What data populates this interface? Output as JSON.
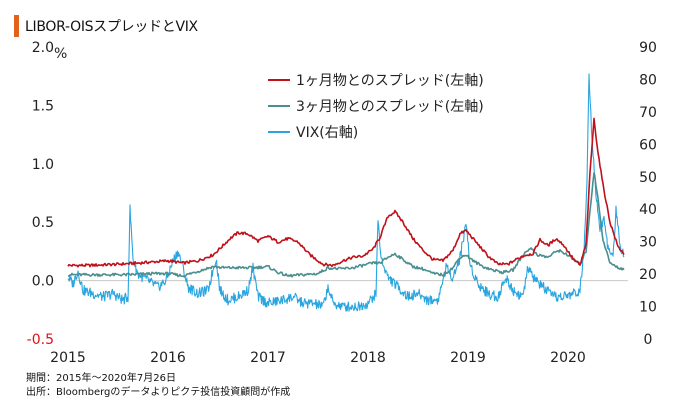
{
  "title": "LIBOR-OISスプレッドとVIX",
  "chart_data": {
    "type": "line",
    "title": "LIBOR-OISスプレッドとVIX",
    "ylabel_left": "%",
    "ylim_left": [
      -0.5,
      2.0
    ],
    "yticks_left": [
      "2.0",
      "1.5",
      "1.0",
      "0.5",
      "0.0",
      "-0.5"
    ],
    "ylim_right": [
      0,
      90
    ],
    "yticks_right": [
      "90",
      "80",
      "70",
      "60",
      "50",
      "40",
      "30",
      "20",
      "10",
      "0"
    ],
    "xticks": [
      "2015",
      "2016",
      "2017",
      "2018",
      "2019",
      "2020"
    ],
    "x_range": [
      "2015-01",
      "2020-07"
    ],
    "legend_position": "top-center",
    "series": [
      {
        "name": "1ヶ月物とのスプレッド(左軸)",
        "axis": "left",
        "color": "#c0101a",
        "points": [
          [
            2015.0,
            0.13
          ],
          [
            2015.2,
            0.13
          ],
          [
            2015.5,
            0.14
          ],
          [
            2015.7,
            0.15
          ],
          [
            2015.85,
            0.16
          ],
          [
            2016.0,
            0.17
          ],
          [
            2016.15,
            0.15
          ],
          [
            2016.3,
            0.17
          ],
          [
            2016.45,
            0.22
          ],
          [
            2016.55,
            0.3
          ],
          [
            2016.62,
            0.36
          ],
          [
            2016.7,
            0.41
          ],
          [
            2016.8,
            0.4
          ],
          [
            2016.9,
            0.34
          ],
          [
            2017.0,
            0.38
          ],
          [
            2017.1,
            0.33
          ],
          [
            2017.2,
            0.36
          ],
          [
            2017.3,
            0.33
          ],
          [
            2017.42,
            0.22
          ],
          [
            2017.55,
            0.14
          ],
          [
            2017.65,
            0.13
          ],
          [
            2017.75,
            0.17
          ],
          [
            2017.85,
            0.2
          ],
          [
            2017.95,
            0.21
          ],
          [
            2018.05,
            0.27
          ],
          [
            2018.12,
            0.37
          ],
          [
            2018.2,
            0.55
          ],
          [
            2018.27,
            0.59
          ],
          [
            2018.35,
            0.5
          ],
          [
            2018.45,
            0.36
          ],
          [
            2018.55,
            0.26
          ],
          [
            2018.65,
            0.18
          ],
          [
            2018.75,
            0.17
          ],
          [
            2018.85,
            0.26
          ],
          [
            2018.92,
            0.4
          ],
          [
            2018.98,
            0.43
          ],
          [
            2019.05,
            0.36
          ],
          [
            2019.12,
            0.29
          ],
          [
            2019.2,
            0.21
          ],
          [
            2019.3,
            0.14
          ],
          [
            2019.4,
            0.14
          ],
          [
            2019.5,
            0.19
          ],
          [
            2019.58,
            0.22
          ],
          [
            2019.65,
            0.23
          ],
          [
            2019.72,
            0.35
          ],
          [
            2019.8,
            0.3
          ],
          [
            2019.88,
            0.36
          ],
          [
            2019.95,
            0.31
          ],
          [
            2020.05,
            0.19
          ],
          [
            2020.12,
            0.13
          ],
          [
            2020.18,
            0.31
          ],
          [
            2020.22,
            0.92
          ],
          [
            2020.26,
            1.38
          ],
          [
            2020.3,
            1.1
          ],
          [
            2020.35,
            0.82
          ],
          [
            2020.42,
            0.5
          ],
          [
            2020.5,
            0.29
          ],
          [
            2020.56,
            0.23
          ]
        ]
      },
      {
        "name": "3ヶ月物とのスプレッド(左軸)",
        "axis": "left",
        "color": "#4a8e8e",
        "points": [
          [
            2015.0,
            0.05
          ],
          [
            2015.3,
            0.05
          ],
          [
            2015.6,
            0.05
          ],
          [
            2015.85,
            0.06
          ],
          [
            2016.0,
            0.06
          ],
          [
            2016.15,
            0.04
          ],
          [
            2016.3,
            0.08
          ],
          [
            2016.45,
            0.12
          ],
          [
            2016.55,
            0.11
          ],
          [
            2016.7,
            0.11
          ],
          [
            2016.85,
            0.11
          ],
          [
            2017.0,
            0.12
          ],
          [
            2017.1,
            0.07
          ],
          [
            2017.2,
            0.04
          ],
          [
            2017.35,
            0.05
          ],
          [
            2017.5,
            0.06
          ],
          [
            2017.6,
            0.11
          ],
          [
            2017.72,
            0.1
          ],
          [
            2017.85,
            0.11
          ],
          [
            2017.95,
            0.13
          ],
          [
            2018.05,
            0.15
          ],
          [
            2018.12,
            0.15
          ],
          [
            2018.2,
            0.2
          ],
          [
            2018.27,
            0.23
          ],
          [
            2018.35,
            0.18
          ],
          [
            2018.45,
            0.12
          ],
          [
            2018.55,
            0.1
          ],
          [
            2018.65,
            0.06
          ],
          [
            2018.75,
            0.05
          ],
          [
            2018.85,
            0.11
          ],
          [
            2018.92,
            0.2
          ],
          [
            2018.98,
            0.22
          ],
          [
            2019.05,
            0.17
          ],
          [
            2019.15,
            0.12
          ],
          [
            2019.25,
            0.09
          ],
          [
            2019.35,
            0.07
          ],
          [
            2019.45,
            0.09
          ],
          [
            2019.55,
            0.22
          ],
          [
            2019.62,
            0.28
          ],
          [
            2019.7,
            0.22
          ],
          [
            2019.8,
            0.2
          ],
          [
            2019.9,
            0.26
          ],
          [
            2019.98,
            0.23
          ],
          [
            2020.05,
            0.18
          ],
          [
            2020.12,
            0.14
          ],
          [
            2020.18,
            0.25
          ],
          [
            2020.22,
            0.6
          ],
          [
            2020.26,
            0.93
          ],
          [
            2020.3,
            0.7
          ],
          [
            2020.35,
            0.35
          ],
          [
            2020.42,
            0.15
          ],
          [
            2020.5,
            0.11
          ],
          [
            2020.56,
            0.1
          ]
        ]
      },
      {
        "name": "VIX(右軸)",
        "axis": "right",
        "color": "#29a5df",
        "points": [
          [
            2015.0,
            19
          ],
          [
            2015.05,
            17
          ],
          [
            2015.1,
            21
          ],
          [
            2015.15,
            15
          ],
          [
            2015.25,
            14
          ],
          [
            2015.35,
            13
          ],
          [
            2015.45,
            14
          ],
          [
            2015.55,
            12
          ],
          [
            2015.6,
            13
          ],
          [
            2015.62,
            40
          ],
          [
            2015.65,
            25
          ],
          [
            2015.7,
            20
          ],
          [
            2015.8,
            18
          ],
          [
            2015.9,
            16
          ],
          [
            2015.98,
            18
          ],
          [
            2016.05,
            24
          ],
          [
            2016.1,
            27
          ],
          [
            2016.15,
            22
          ],
          [
            2016.2,
            16
          ],
          [
            2016.3,
            14
          ],
          [
            2016.4,
            15
          ],
          [
            2016.48,
            25
          ],
          [
            2016.52,
            15
          ],
          [
            2016.6,
            12
          ],
          [
            2016.7,
            13
          ],
          [
            2016.8,
            15
          ],
          [
            2016.85,
            22
          ],
          [
            2016.9,
            13
          ],
          [
            2017.0,
            11
          ],
          [
            2017.15,
            12
          ],
          [
            2017.25,
            13
          ],
          [
            2017.35,
            11
          ],
          [
            2017.45,
            11
          ],
          [
            2017.55,
            10
          ],
          [
            2017.6,
            16
          ],
          [
            2017.65,
            11
          ],
          [
            2017.75,
            10
          ],
          [
            2017.9,
            10
          ],
          [
            2018.0,
            11
          ],
          [
            2018.08,
            14
          ],
          [
            2018.1,
            37
          ],
          [
            2018.13,
            25
          ],
          [
            2018.2,
            19
          ],
          [
            2018.3,
            16
          ],
          [
            2018.4,
            13
          ],
          [
            2018.5,
            14
          ],
          [
            2018.6,
            12
          ],
          [
            2018.7,
            12
          ],
          [
            2018.78,
            22
          ],
          [
            2018.85,
            19
          ],
          [
            2018.92,
            25
          ],
          [
            2018.98,
            36
          ],
          [
            2019.02,
            23
          ],
          [
            2019.1,
            17
          ],
          [
            2019.2,
            14
          ],
          [
            2019.3,
            13
          ],
          [
            2019.38,
            19
          ],
          [
            2019.45,
            15
          ],
          [
            2019.55,
            13
          ],
          [
            2019.6,
            22
          ],
          [
            2019.65,
            19
          ],
          [
            2019.75,
            16
          ],
          [
            2019.85,
            13
          ],
          [
            2019.95,
            13
          ],
          [
            2020.05,
            14
          ],
          [
            2020.12,
            15
          ],
          [
            2020.16,
            27
          ],
          [
            2020.19,
            50
          ],
          [
            2020.21,
            82
          ],
          [
            2020.24,
            62
          ],
          [
            2020.28,
            45
          ],
          [
            2020.32,
            34
          ],
          [
            2020.36,
            37
          ],
          [
            2020.4,
            28
          ],
          [
            2020.45,
            25
          ],
          [
            2020.48,
            40
          ],
          [
            2020.52,
            29
          ],
          [
            2020.56,
            26
          ]
        ]
      }
    ]
  },
  "notes": {
    "period": "期間：2015年～2020年7月26日",
    "source": "出所：Bloombergのデータよりピクテ投信投資顧問が作成"
  }
}
